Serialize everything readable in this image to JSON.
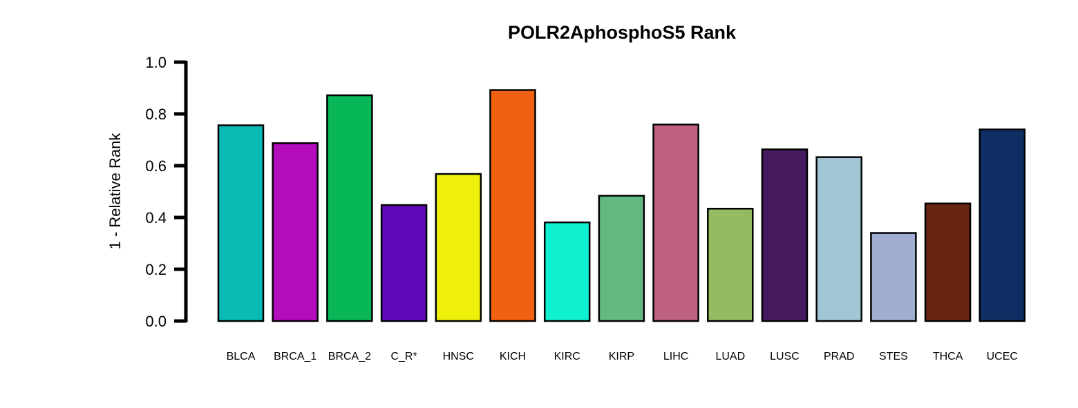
{
  "chart_data": {
    "type": "bar",
    "title": "POLR2AphosphoS5 Rank",
    "xlabel": "",
    "ylabel": "1 - Relative Rank",
    "ylim": [
      0,
      1
    ],
    "yticks": [
      "0.0",
      "0.2",
      "0.4",
      "0.6",
      "0.8",
      "1.0"
    ],
    "grid": false,
    "categories": [
      "BLCA",
      "BRCA_1",
      "BRCA_2",
      "C_R*",
      "HNSC",
      "KICH",
      "KIRC",
      "KIRP",
      "LIHC",
      "LUAD",
      "LUSC",
      "PRAD",
      "STES",
      "THCA",
      "UCEC"
    ],
    "values": [
      0.756,
      0.687,
      0.872,
      0.448,
      0.568,
      0.892,
      0.381,
      0.484,
      0.759,
      0.434,
      0.663,
      0.633,
      0.34,
      0.454,
      0.74
    ],
    "colors": [
      "#0ABAB5",
      "#B30CBA",
      "#08B858",
      "#5E0ABA",
      "#EEF00C",
      "#F26012",
      "#0EF0D0",
      "#62BA80",
      "#BE6182",
      "#96BA62",
      "#461A5E",
      "#A2C6D6",
      "#A0AED2",
      "#682410",
      "#0E2E64"
    ]
  }
}
